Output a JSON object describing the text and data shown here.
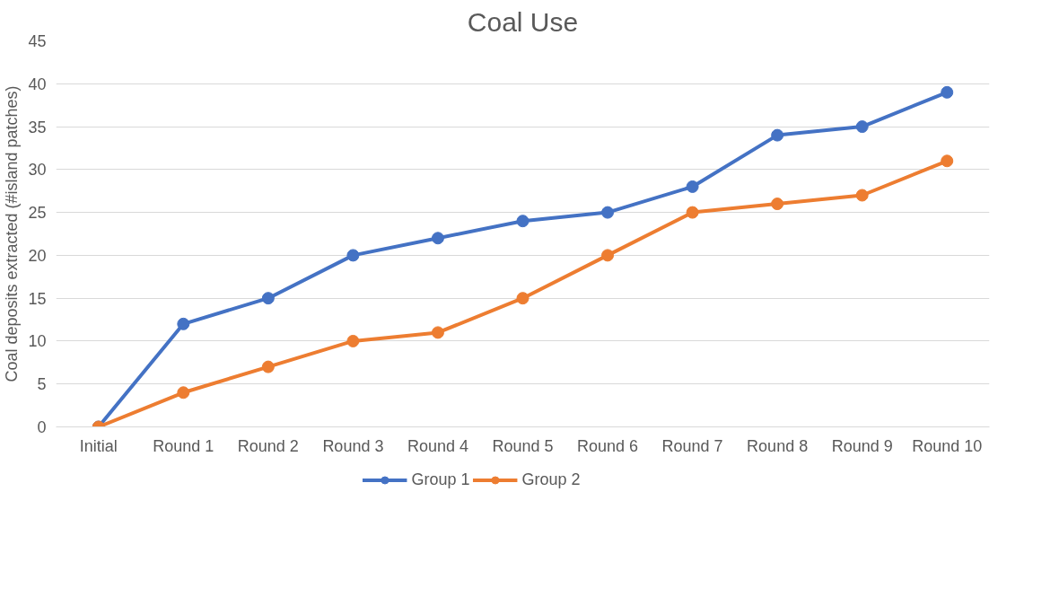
{
  "chart_data": {
    "type": "line",
    "title": "Coal Use",
    "ylabel": "Coal deposits extracted (#island patches)",
    "categories": [
      "Initial",
      "Round 1",
      "Round 2",
      "Round 3",
      "Round 4",
      "Round 5",
      "Round 6",
      "Round 7",
      "Round 8",
      "Round 9",
      "Round 10"
    ],
    "series": [
      {
        "name": "Group 1",
        "color": "#4472c4",
        "values": [
          0,
          12,
          15,
          20,
          22,
          24,
          25,
          28,
          34,
          35,
          39
        ]
      },
      {
        "name": "Group 2",
        "color": "#ed7d31",
        "values": [
          0,
          4,
          7,
          10,
          11,
          15,
          20,
          25,
          26,
          27,
          31
        ]
      }
    ],
    "ylim": [
      0,
      45
    ],
    "yticks": [
      0,
      5,
      10,
      15,
      20,
      25,
      30,
      35,
      40,
      45
    ],
    "grid": "y",
    "legend": "bottom",
    "marker": "circle",
    "line_style": "solid"
  }
}
